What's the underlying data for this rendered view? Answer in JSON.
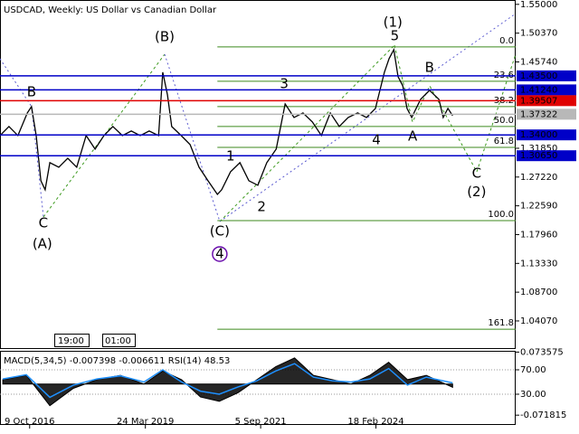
{
  "chart_data": [
    {
      "type": "line",
      "title": "USDCAD, Weekly:  US Dollar vs Canadian Dollar",
      "xlim": [
        2016.14,
        2027.1
      ],
      "ylim": [
        0.997,
        1.557
      ],
      "xticks": [
        {
          "value": 2016.77,
          "label": "9 Oct 2016"
        },
        {
          "value": 2019.23,
          "label": "24 Mar 2019"
        },
        {
          "value": 2021.68,
          "label": "5 Sep 2021"
        },
        {
          "value": 2024.13,
          "label": "18 Feb 2024"
        }
      ],
      "yticks": [
        {
          "value": 1.55,
          "label": "1.55000"
        },
        {
          "value": 1.5037,
          "label": "1.50370"
        },
        {
          "value": 1.4574,
          "label": "1.45740"
        },
        {
          "value": 1.3185,
          "label": "1.31850"
        },
        {
          "value": 1.2722,
          "label": "1.27220"
        },
        {
          "value": 1.2259,
          "label": "1.22590"
        },
        {
          "value": 1.1796,
          "label": "1.17960"
        },
        {
          "value": 1.1333,
          "label": "1.13330"
        },
        {
          "value": 1.087,
          "label": "1.08700"
        },
        {
          "value": 1.0407,
          "label": "1.04070"
        }
      ],
      "series": [
        {
          "name": "USDCAD",
          "color": "#000000",
          "x": [
            2016.14,
            2016.33,
            2016.52,
            2016.72,
            2016.81,
            2016.91,
            2017.01,
            2017.1,
            2017.2,
            2017.39,
            2017.58,
            2017.77,
            2017.97,
            2018.16,
            2018.35,
            2018.54,
            2018.74,
            2018.93,
            2019.12,
            2019.31,
            2019.51,
            2019.6,
            2019.7,
            2019.79,
            2019.99,
            2020.18,
            2020.37,
            2020.56,
            2020.76,
            2020.85,
            2021.04,
            2021.24,
            2021.43,
            2021.62,
            2021.81,
            2022.01,
            2022.2,
            2022.39,
            2022.58,
            2022.78,
            2022.97,
            2023.16,
            2023.35,
            2023.54,
            2023.74,
            2023.93,
            2024.12,
            2024.31,
            2024.41,
            2024.51,
            2024.6,
            2024.7,
            2024.79,
            2024.89,
            2025.08,
            2025.27,
            2025.47,
            2025.56,
            2025.66,
            2025.76
          ],
          "values": [
            1.3389,
            1.3535,
            1.3389,
            1.3753,
            1.3855,
            1.3389,
            1.2662,
            1.2517,
            1.2953,
            1.288,
            1.3025,
            1.288,
            1.3389,
            1.3171,
            1.3389,
            1.3535,
            1.3389,
            1.3462,
            1.3389,
            1.3462,
            1.3389,
            1.4408,
            1.4044,
            1.3535,
            1.3389,
            1.3244,
            1.288,
            1.2662,
            1.2443,
            1.2517,
            1.2807,
            1.2953,
            1.2662,
            1.2589,
            1.2953,
            1.3171,
            1.3899,
            1.3681,
            1.3753,
            1.3608,
            1.3389,
            1.3753,
            1.3535,
            1.3681,
            1.3753,
            1.3681,
            1.3826,
            1.4408,
            1.4627,
            1.4772,
            1.4336,
            1.419,
            1.3826,
            1.3681,
            1.3972,
            1.4117,
            1.3972,
            1.3681,
            1.3826,
            1.371
          ]
        }
      ],
      "levels": [
        {
          "value": 1.435,
          "label": "1.43500",
          "color": "#0000c8"
        },
        {
          "value": 1.4124,
          "label": "1.41240",
          "color": "#0000c8"
        },
        {
          "value": 1.39507,
          "label": "1.39507",
          "color": "#e00000"
        },
        {
          "value": 1.37322,
          "label": "1.37322",
          "color": "#b8b8b8"
        },
        {
          "value": 1.34,
          "label": "1.34000",
          "color": "#0000c8"
        },
        {
          "value": 1.3065,
          "label": "1.30650",
          "color": "#0000c8"
        }
      ],
      "fib_start": 2020.76,
      "fib_color": "#3c8a1e",
      "fib_levels": [
        {
          "level": "0.0",
          "price": 1.4816
        },
        {
          "level": "23.6",
          "price": 1.4263
        },
        {
          "level": "38.2",
          "price": 1.3855
        },
        {
          "level": "50.0",
          "price": 1.3535
        },
        {
          "level": "61.8",
          "price": 1.32
        },
        {
          "level": "100.0",
          "price": 1.2021
        },
        {
          "level": "161.8",
          "price": 1.0274
        }
      ],
      "annotations": [
        {
          "text": "B",
          "x": 2016.81,
          "y": 1.4088,
          "color": "#a0282a"
        },
        {
          "text": "C",
          "x": 2017.06,
          "y": 1.1978,
          "color": "#a0282a"
        },
        {
          "text": "(A)",
          "x": 2017.04,
          "y": 1.1643,
          "color": "#3c9a1e"
        },
        {
          "text": "(B)",
          "x": 2019.64,
          "y": 1.4976,
          "color": "#3c9a1e"
        },
        {
          "text": "3",
          "x": 2022.18,
          "y": 1.4219,
          "color": "#a0282a"
        },
        {
          "text": "1",
          "x": 2021.04,
          "y": 1.3055,
          "color": "#a0282a"
        },
        {
          "text": "2",
          "x": 2021.7,
          "y": 1.2239,
          "color": "#a0282a"
        },
        {
          "text": "(C)",
          "x": 2020.81,
          "y": 1.1847,
          "color": "#3c9a1e"
        },
        {
          "text": "4",
          "x": 2020.81,
          "y": 1.1483,
          "color": "#6a0dad",
          "circled": true
        },
        {
          "text": "(1)",
          "x": 2024.49,
          "y": 1.5209,
          "color": "#3c9a1e"
        },
        {
          "text": "5",
          "x": 2024.53,
          "y": 1.4991,
          "color": "#a0282a"
        },
        {
          "text": "B",
          "x": 2025.27,
          "y": 1.4481,
          "color": "#a0282a"
        },
        {
          "text": "4",
          "x": 2024.14,
          "y": 1.3319,
          "color": "#a0282a"
        },
        {
          "text": "A",
          "x": 2024.91,
          "y": 1.3377,
          "color": "#a0282a"
        },
        {
          "text": "C",
          "x": 2026.27,
          "y": 1.278,
          "color": "#a0282a"
        },
        {
          "text": "(2)",
          "x": 2026.27,
          "y": 1.2478,
          "color": "#3c9a1e"
        }
      ]
    },
    {
      "type": "line",
      "title": "MACD(5,34,5) -0.007398 -0.006611 RSI(14) 48.53",
      "xlim": [
        2016.14,
        2027.1
      ],
      "ylim": [
        -20.4,
        101.1
      ],
      "y2lim": [
        -0.0944,
        0.0765
      ],
      "yticks": [
        {
          "value": 70,
          "label": "70.00"
        },
        {
          "value": 30,
          "label": "30.00"
        }
      ],
      "y2ticks": [
        0.073575,
        -0.071815
      ],
      "series": [
        {
          "name": "MACD",
          "color": "#000000",
          "axis": "y2",
          "x": [
            2016.2,
            2016.7,
            2017.2,
            2017.7,
            2018.2,
            2018.7,
            2019.2,
            2019.6,
            2020.0,
            2020.4,
            2020.8,
            2021.2,
            2021.6,
            2022.0,
            2022.4,
            2022.8,
            2023.2,
            2023.6,
            2024.0,
            2024.4,
            2024.8,
            2025.2,
            2025.76
          ],
          "values": [
            0.01,
            0.02,
            -0.05,
            -0.01,
            0.01,
            0.02,
            0.0,
            0.03,
            0.01,
            -0.03,
            -0.04,
            -0.02,
            0.01,
            0.04,
            0.06,
            0.02,
            0.01,
            0.0,
            0.02,
            0.05,
            0.01,
            0.02,
            -0.007398
          ]
        },
        {
          "name": "RSI",
          "color": "#1e90ff",
          "x": [
            2016.2,
            2016.7,
            2017.2,
            2017.7,
            2018.2,
            2018.7,
            2019.2,
            2019.6,
            2020.0,
            2020.4,
            2020.8,
            2021.2,
            2021.6,
            2022.0,
            2022.4,
            2022.8,
            2023.2,
            2023.6,
            2024.0,
            2024.4,
            2024.8,
            2025.2,
            2025.76
          ],
          "values": [
            55,
            62,
            25,
            45,
            55,
            60,
            50,
            70,
            50,
            35,
            30,
            42,
            52,
            68,
            80,
            58,
            52,
            50,
            55,
            72,
            45,
            58,
            48.53
          ]
        }
      ]
    }
  ],
  "overlay": {
    "time_labels": [
      "19:00",
      "01:00"
    ]
  }
}
